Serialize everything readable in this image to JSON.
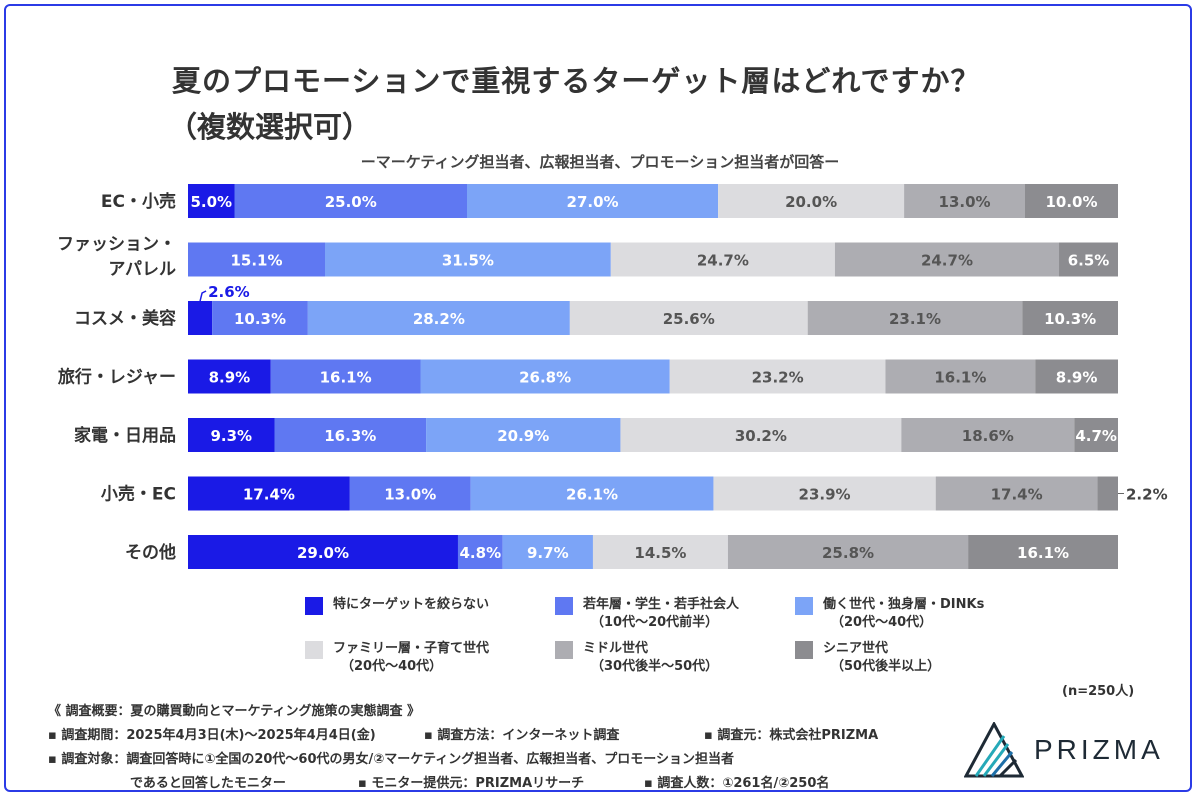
{
  "title_line1": "夏のプロモーションで重視するターゲット層はどれですか？",
  "title_line2": "（複数選択可）",
  "subtitle": "ーマーケティング担当者、広報担当者、プロモーション担当者が回答ー",
  "n_label": "(n=250人)",
  "chart_data": {
    "type": "bar",
    "orientation": "horizontal-stacked-100",
    "title": "夏のプロモーションで重視するターゲット層はどれですか？（複数選択可）",
    "categories": [
      [
        "EC・小売"
      ],
      [
        "ファッション・",
        "アパレル"
      ],
      [
        "コスメ・美容"
      ],
      [
        "旅行・レジャー"
      ],
      [
        "家電・日用品"
      ],
      [
        "小売・EC"
      ],
      [
        "その他"
      ]
    ],
    "series": [
      {
        "name": "特にターゲットを絞らない",
        "color": "#1a1ae6",
        "label_color": "#ffffff",
        "values": [
          5.0,
          0,
          2.6,
          8.9,
          9.3,
          17.4,
          29.0
        ]
      },
      {
        "name": "若年層・学生・若手社会人（10代〜20代前半）",
        "color": "#5f78f2",
        "label_color": "#ffffff",
        "values": [
          25.0,
          15.1,
          10.3,
          16.1,
          16.3,
          13.0,
          4.8
        ]
      },
      {
        "name": "働く世代・独身層・DINKs（20代〜40代）",
        "color": "#7ca4f7",
        "label_color": "#ffffff",
        "values": [
          27.0,
          31.5,
          28.2,
          26.8,
          20.9,
          26.1,
          9.7
        ]
      },
      {
        "name": "ファミリー層・子育て世代（20代〜40代）",
        "color": "#dcdcdf",
        "label_color": "#555555",
        "values": [
          20.0,
          24.7,
          25.6,
          23.2,
          30.2,
          23.9,
          14.5
        ]
      },
      {
        "name": "ミドル世代（30代後半〜50代）",
        "color": "#adadb2",
        "label_color": "#555555",
        "values": [
          13.0,
          24.7,
          23.1,
          16.1,
          18.6,
          17.4,
          25.8
        ]
      },
      {
        "name": "シニア世代（50代後半以上）",
        "color": "#8c8c90",
        "label_color": "#ffffff",
        "values": [
          10.0,
          6.5,
          10.3,
          8.9,
          4.7,
          2.2,
          16.1
        ]
      }
    ],
    "data_labels": [
      [
        "5.0%",
        "25.0%",
        "27.0%",
        "20.0%",
        "13.0%",
        "10.0%"
      ],
      [
        "",
        "15.1%",
        "31.5%",
        "24.7%",
        "24.7%",
        "6.5%"
      ],
      [
        "2.6%",
        "10.3%",
        "28.2%",
        "25.6%",
        "23.1%",
        "10.3%"
      ],
      [
        "8.9%",
        "16.1%",
        "26.8%",
        "23.2%",
        "16.1%",
        "8.9%"
      ],
      [
        "9.3%",
        "16.3%",
        "20.9%",
        "30.2%",
        "18.6%",
        "4.7%"
      ],
      [
        "17.4%",
        "13.0%",
        "26.1%",
        "23.9%",
        "17.4%",
        "2.2%"
      ],
      [
        "29.0%",
        "4.8%",
        "9.7%",
        "14.5%",
        "25.8%",
        "16.1%"
      ]
    ],
    "xlim": [
      0,
      100
    ]
  },
  "legend": [
    {
      "label": "特にターゲットを絞らない",
      "sub": "",
      "color": "#1a1ae6"
    },
    {
      "label": "若年層・学生・若手社会人",
      "sub": "（10代〜20代前半）",
      "color": "#5f78f2"
    },
    {
      "label": "働く世代・独身層・DINKs",
      "sub": "（20代〜40代）",
      "color": "#7ca4f7"
    },
    {
      "label": "ファミリー層・子育て世代",
      "sub": "（20代〜40代）",
      "color": "#dcdcdf"
    },
    {
      "label": "ミドル世代",
      "sub": "（30代後半〜50代）",
      "color": "#adadb2"
    },
    {
      "label": "シニア世代",
      "sub": "（50代後半以上）",
      "color": "#8c8c90"
    }
  ],
  "survey": {
    "heading": "《 調査概要：夏の購買動向とマーケティング施策の実態調査 》",
    "period": "▪ 調査期間：2025年4月3日(木)〜2025年4月4日(金)",
    "method": "▪ 調査方法：インターネット調査",
    "source": "▪ 調査元：株式会社PRIZMA",
    "target": "▪ 調査対象：調査回答時に①全国の20代〜60代の男女/②マーケティング担当者、広報担当者、プロモーション担当者",
    "target2": "であると回答したモニター",
    "provider": "▪ モニター提供元：PRIZMAリサーチ",
    "count": "▪ 調査人数：①261名/②250名"
  },
  "logo_text": "PRIZMA",
  "accent_color": "#2b3be6"
}
